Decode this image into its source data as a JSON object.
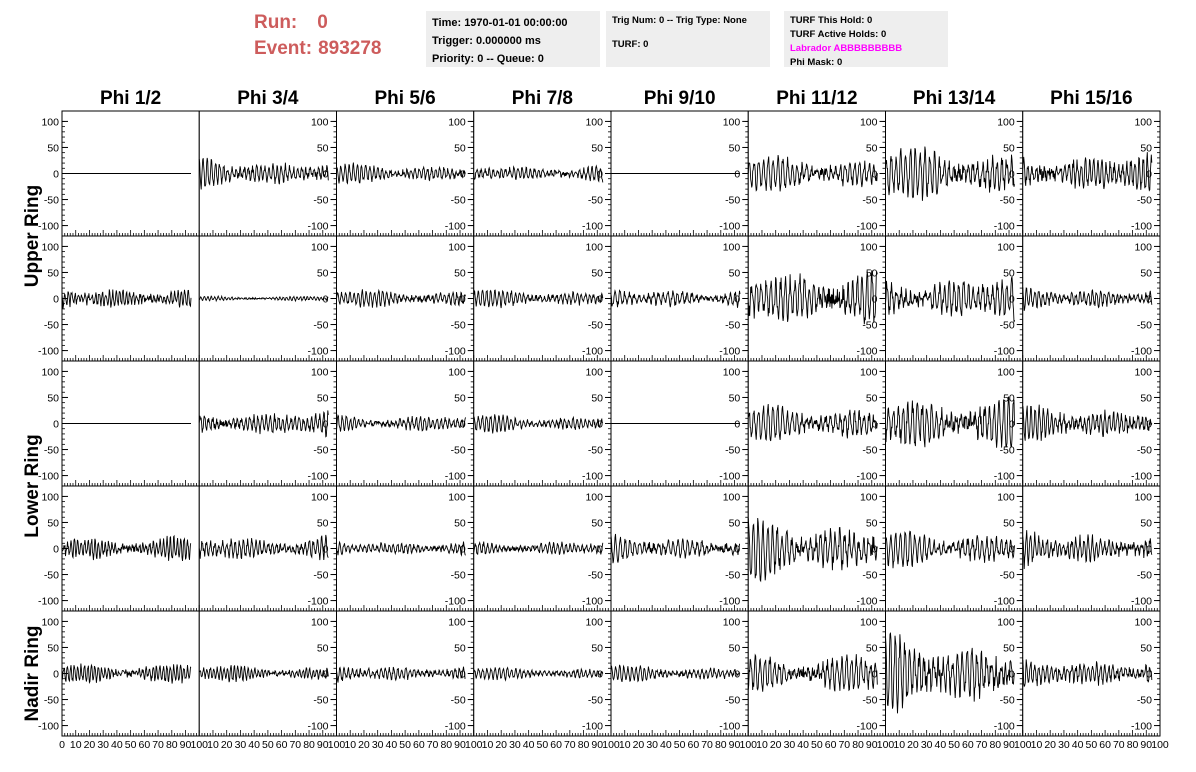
{
  "header": {
    "run_label": "Run:",
    "run_value": "0",
    "event_label": "Event:",
    "event_value": "893278",
    "time_text": "Time: 1970-01-01 00:00:00",
    "trigger_text": "Trigger: 0.000000 ms",
    "priority_text": "Priority: 0 -- Queue: 0",
    "trig_text": "Trig Num: 0 -- Trig Type: None",
    "turf_text": "TURF: 0",
    "turf_hold_text": "TURF This Hold: 0",
    "turf_active_text": "TURF Active Holds: 0",
    "labrador_text": "Labrador ABBBBBBBBB",
    "phi_mask_text": "Phi Mask: 0",
    "labrador_color": "#ff00ff",
    "run_color": "#cd5c5c"
  },
  "chart_data": {
    "type": "line",
    "layout": "grid 5 rows x 8 columns of waveform panels",
    "column_titles": [
      "Phi 1/2",
      "Phi 3/4",
      "Phi 5/6",
      "Phi 7/8",
      "Phi 9/10",
      "Phi 11/12",
      "Phi 13/14",
      "Phi 15/16"
    ],
    "ring_labels": [
      "Upper Ring",
      "Lower Ring",
      "Nadir Ring"
    ],
    "ring_label_rows": [
      [
        0,
        1
      ],
      [
        2,
        3
      ],
      [
        4,
        4
      ]
    ],
    "xlim": [
      0,
      100
    ],
    "ylim": [
      -120,
      120
    ],
    "x_ticks": [
      0,
      10,
      20,
      30,
      40,
      50,
      60,
      70,
      80,
      90,
      100
    ],
    "y_ticks": [
      -100,
      -50,
      0,
      50,
      100
    ],
    "y_tick_side": "left in first column, right in other columns",
    "samples_per_trace": 260,
    "trace_x_range": [
      0,
      94
    ],
    "trace_color": "#000000",
    "description": "Each panel is a noisy oscillating voltage trace; values listed as amplitude envelope and dominant period per panel (estimated).",
    "panels": [
      [
        {
          "amp": 0,
          "period": 0
        },
        {
          "amp": 28,
          "period": 3
        },
        {
          "amp": 18,
          "period": 3
        },
        {
          "amp": 17,
          "period": 3
        },
        {
          "amp": 0,
          "period": 0
        },
        {
          "amp": 35,
          "period": 3.5
        },
        {
          "amp": 50,
          "period": 3.5
        },
        {
          "amp": 40,
          "period": 3
        }
      ],
      [
        {
          "amp": 22,
          "period": 2.5
        },
        {
          "amp": 5,
          "period": 2.5
        },
        {
          "amp": 17,
          "period": 3
        },
        {
          "amp": 17,
          "period": 3
        },
        {
          "amp": 20,
          "period": 3.5
        },
        {
          "amp": 60,
          "period": 3.5
        },
        {
          "amp": 45,
          "period": 3.5
        },
        {
          "amp": 22,
          "period": 3
        }
      ],
      [
        {
          "amp": 0,
          "period": 0
        },
        {
          "amp": 25,
          "period": 3
        },
        {
          "amp": 17,
          "period": 3
        },
        {
          "amp": 16,
          "period": 3
        },
        {
          "amp": 0,
          "period": 0
        },
        {
          "amp": 35,
          "period": 3.5
        },
        {
          "amp": 55,
          "period": 3.5
        },
        {
          "amp": 35,
          "period": 3
        }
      ],
      [
        {
          "amp": 25,
          "period": 2.5
        },
        {
          "amp": 25,
          "period": 3
        },
        {
          "amp": 15,
          "period": 3
        },
        {
          "amp": 15,
          "period": 3
        },
        {
          "amp": 25,
          "period": 3.5
        },
        {
          "amp": 55,
          "period": 3.5
        },
        {
          "amp": 35,
          "period": 3.5
        },
        {
          "amp": 35,
          "period": 3
        }
      ],
      [
        {
          "amp": 22,
          "period": 2.5
        },
        {
          "amp": 15,
          "period": 2.5
        },
        {
          "amp": 17,
          "period": 3
        },
        {
          "amp": 12,
          "period": 3
        },
        {
          "amp": 15,
          "period": 3
        },
        {
          "amp": 40,
          "period": 3.5
        },
        {
          "amp": 70,
          "period": 3.5
        },
        {
          "amp": 30,
          "period": 3
        }
      ]
    ]
  }
}
